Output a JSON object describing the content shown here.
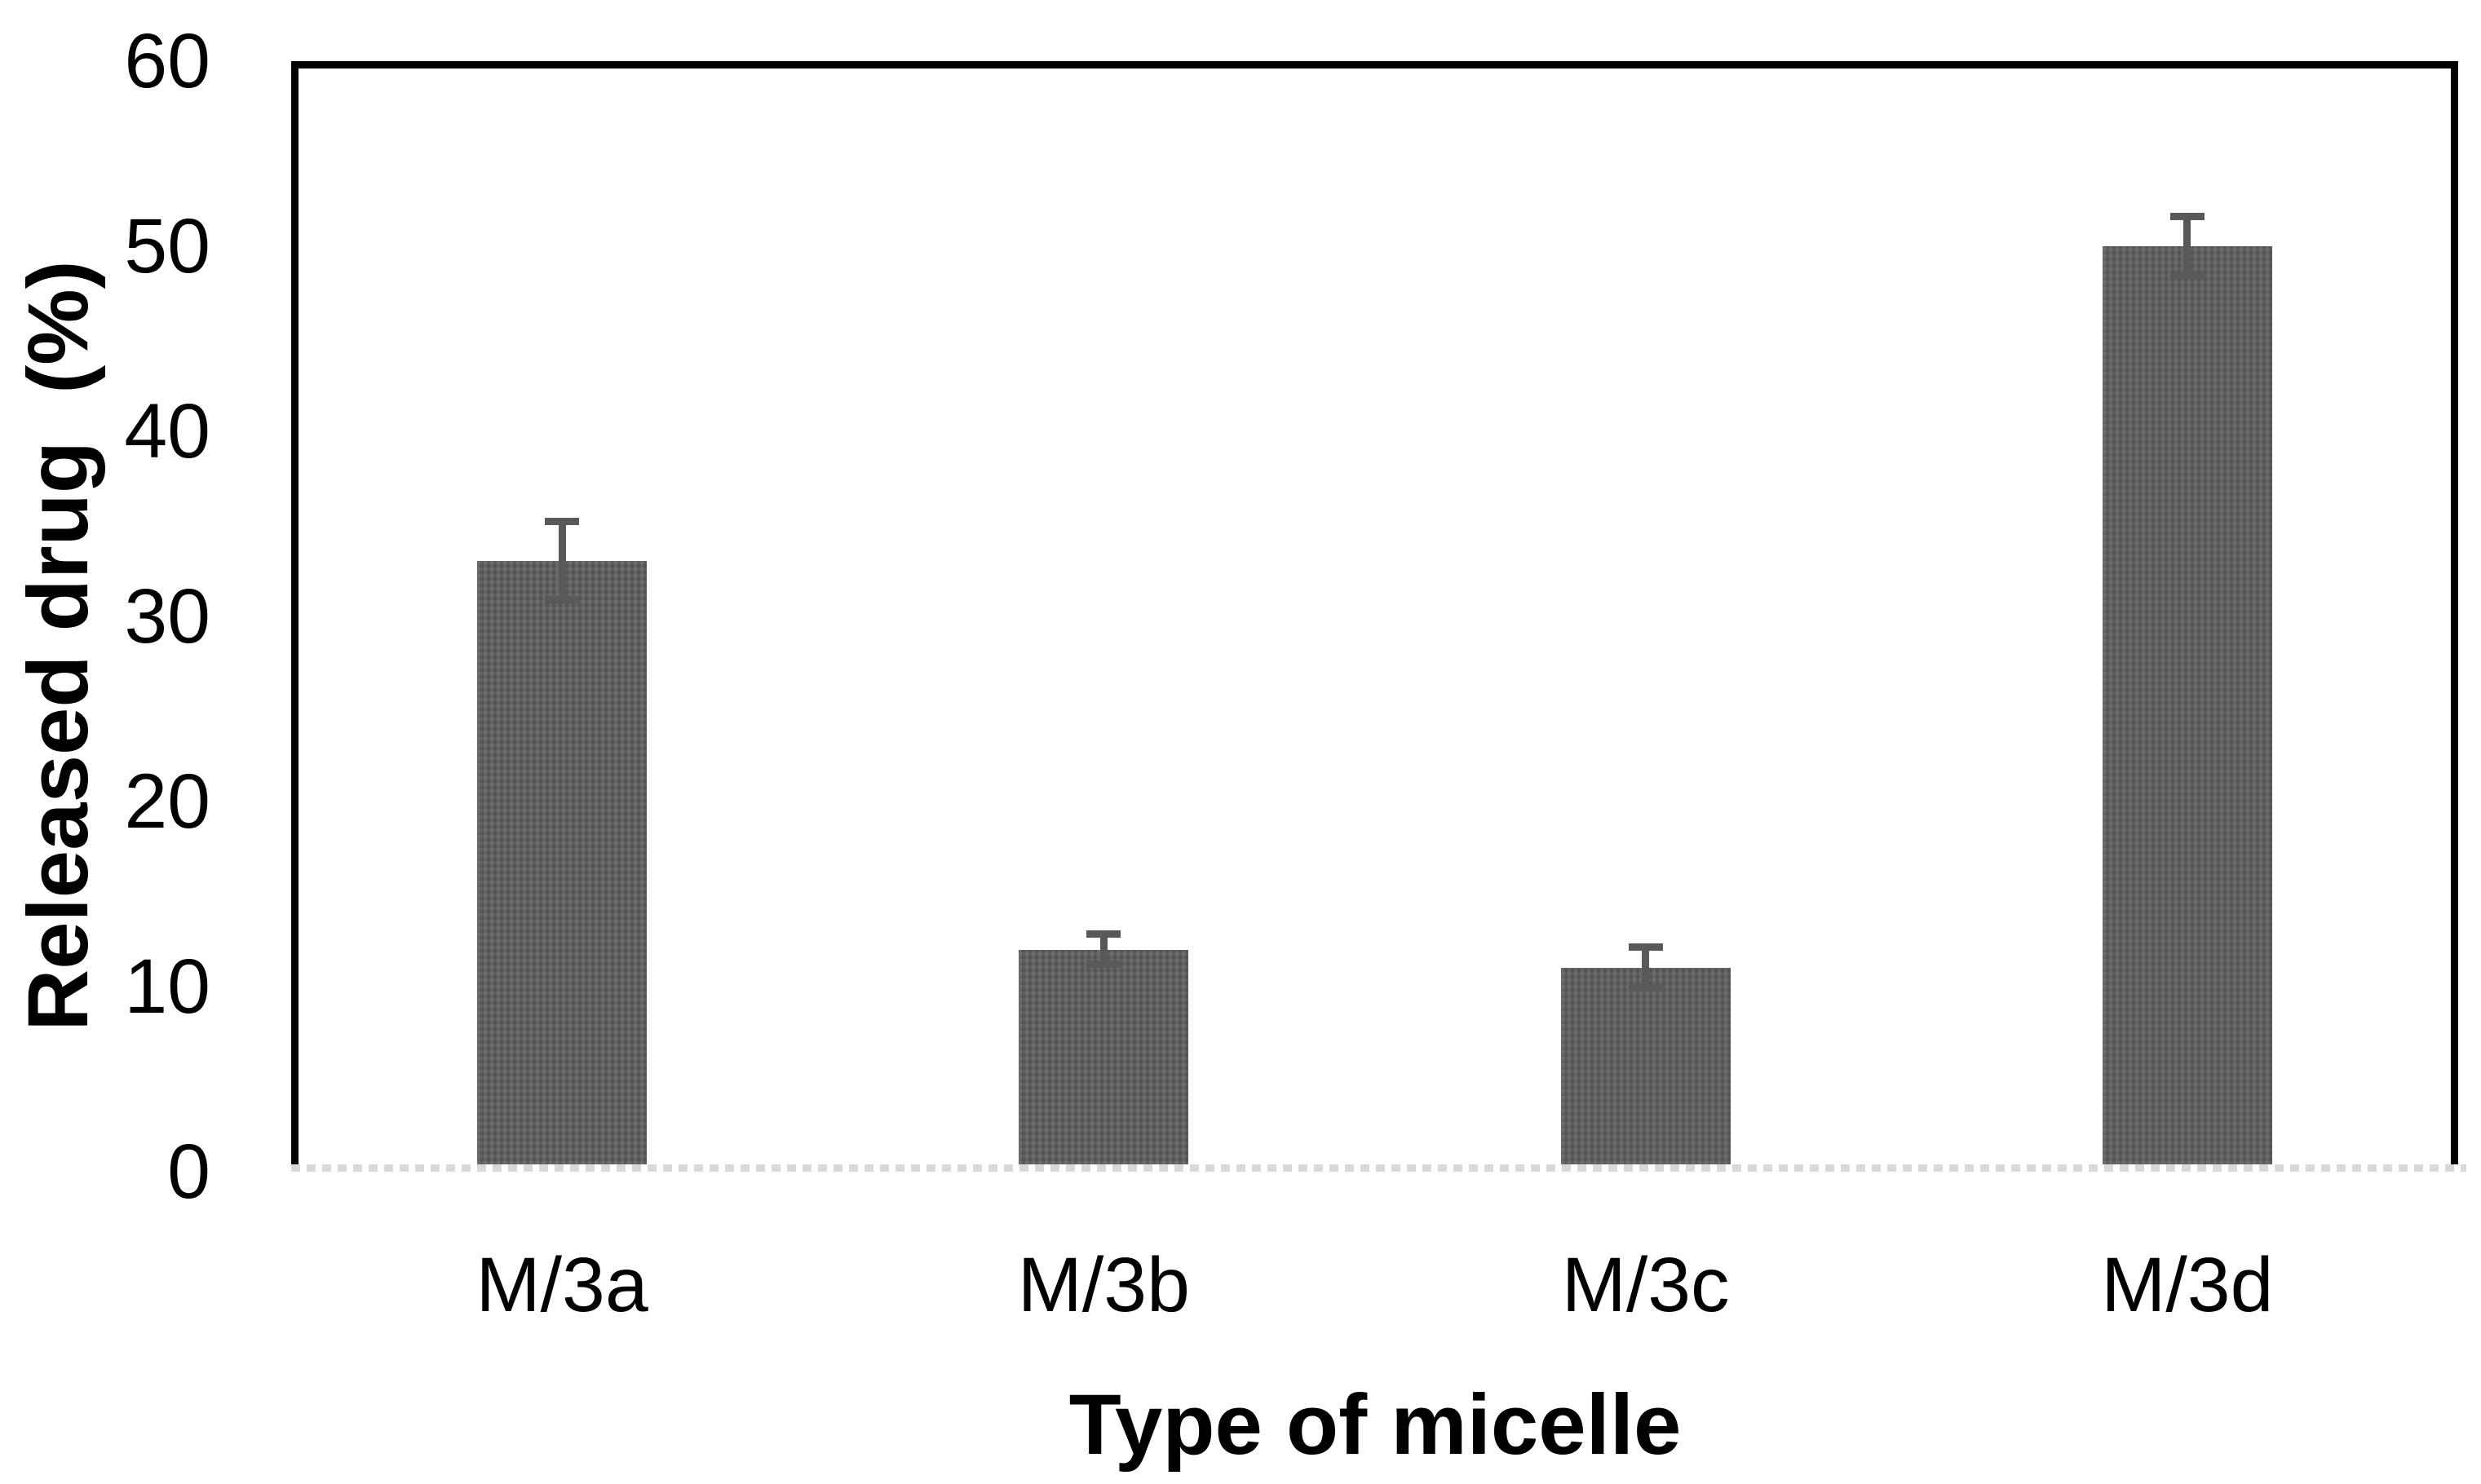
{
  "chart_data": {
    "type": "bar",
    "title": "",
    "xlabel": "Type of micelle",
    "ylabel": "Released drug  (%)",
    "categories": [
      "M/3a",
      "M/3b",
      "M/3c",
      "M/3d"
    ],
    "values": [
      33,
      12,
      11,
      50
    ],
    "errors": [
      2.1,
      0.8,
      1.1,
      1.6
    ],
    "ylim": [
      0,
      60
    ],
    "yticks": [
      0,
      10,
      20,
      30,
      40,
      50,
      60
    ],
    "grid": false,
    "legend": false,
    "bar_color": "#595959",
    "error_bar_color": "#595959",
    "axis_frame_color": "#000000",
    "baseline_color": "#d9d9d9",
    "background_color": "#ffffff"
  }
}
